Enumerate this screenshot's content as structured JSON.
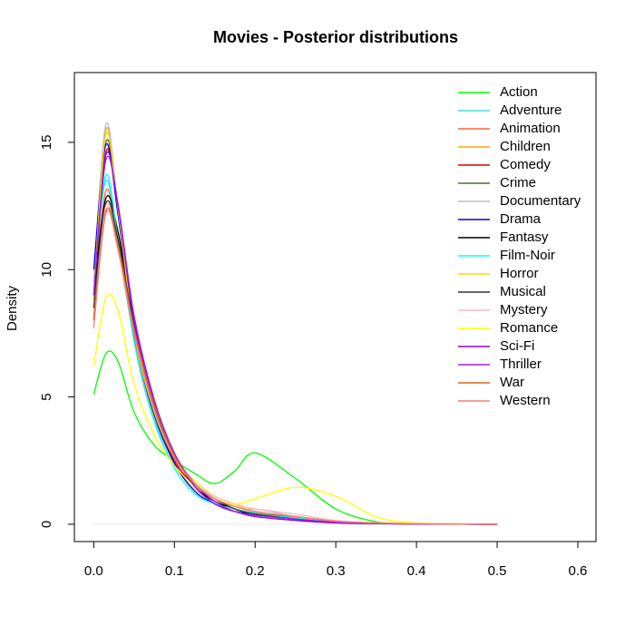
{
  "chart_data": {
    "type": "line",
    "title": "Movies - Posterior distributions",
    "y_label": "Density",
    "x": [
      0,
      0.015,
      0.03,
      0.05,
      0.075,
      0.1,
      0.125,
      0.15,
      0.175,
      0.2,
      0.25,
      0.3,
      0.35,
      0.4,
      0.5
    ],
    "xlim": [
      -0.024,
      0.6225
    ],
    "ylim": [
      -0.68,
      17.74
    ],
    "xticks": [
      {
        "value": 0,
        "label": "0.0"
      },
      0.1,
      0.2,
      0.3,
      0.4,
      0.5,
      0.6
    ],
    "yticks": [
      0,
      5,
      10,
      15
    ],
    "hline": 0,
    "legend": "top-right",
    "series": [
      {
        "name": "Action",
        "color": "#00ff00",
        "values": [
          5.1,
          6.7,
          6.4,
          4.4,
          3.1,
          2.5,
          2.0,
          1.6,
          2.1,
          2.8,
          1.8,
          0.6,
          0.1,
          0.02,
          0
        ]
      },
      {
        "name": "Adventure",
        "color": "#40e0d0",
        "values": [
          9.5,
          13.5,
          11,
          7.3,
          4.2,
          2.4,
          1.3,
          0.8,
          0.6,
          0.45,
          0.3,
          0.12,
          0.05,
          0.02,
          0
        ]
      },
      {
        "name": "Animation",
        "color": "#ff6347",
        "values": [
          8.5,
          13.1,
          11,
          7.5,
          4.4,
          2.5,
          1.5,
          1.0,
          0.7,
          0.5,
          0.25,
          0.1,
          0.05,
          0.02,
          0
        ]
      },
      {
        "name": "Children",
        "color": "#ffa500",
        "values": [
          8.8,
          15.5,
          12.3,
          7.4,
          4.3,
          2.6,
          1.6,
          1.0,
          0.7,
          0.5,
          0.25,
          0.12,
          0.05,
          0.03,
          0
        ]
      },
      {
        "name": "Comedy",
        "color": "#dd0000",
        "values": [
          8.0,
          14.6,
          12.2,
          7.6,
          4.4,
          2.5,
          1.5,
          1.0,
          0.6,
          0.4,
          0.2,
          0.08,
          0.03,
          0.01,
          0
        ]
      },
      {
        "name": "Crime",
        "color": "#556b2f",
        "values": [
          9,
          15,
          12.5,
          7.7,
          4.6,
          2.7,
          1.5,
          0.9,
          0.6,
          0.4,
          0.3,
          0.1,
          0.04,
          0.01,
          0
        ]
      },
      {
        "name": "Documentary",
        "color": "#bebebe",
        "values": [
          9.5,
          15.7,
          12.5,
          7.2,
          4.0,
          2.3,
          1.4,
          0.8,
          0.5,
          0.6,
          0.3,
          0.1,
          0.05,
          0.02,
          0
        ]
      },
      {
        "name": "Drama",
        "color": "#0000cd",
        "values": [
          10,
          14.9,
          12.2,
          7.3,
          4.3,
          2.4,
          1.3,
          0.8,
          0.5,
          0.4,
          0.2,
          0.08,
          0.03,
          0.01,
          0
        ]
      },
      {
        "name": "Fantasy",
        "color": "#000000",
        "values": [
          9,
          12.8,
          11.5,
          7.8,
          4.8,
          2.7,
          1.5,
          0.9,
          0.6,
          0.4,
          0.25,
          0.1,
          0.04,
          0.01,
          0
        ]
      },
      {
        "name": "Film-Noir",
        "color": "#00ffff",
        "values": [
          9.2,
          13.7,
          11.2,
          7.2,
          4.1,
          2.2,
          1.2,
          0.8,
          0.6,
          0.4,
          0.25,
          0.1,
          0.04,
          0.01,
          0
        ]
      },
      {
        "name": "Horror",
        "color": "#ffd700",
        "values": [
          9,
          15.3,
          12.4,
          7.5,
          4.4,
          2.6,
          1.7,
          1.1,
          0.8,
          0.5,
          0.3,
          0.12,
          0.06,
          0.03,
          0
        ]
      },
      {
        "name": "Musical",
        "color": "#333333",
        "values": [
          8.5,
          12.6,
          11.2,
          7.8,
          4.7,
          2.7,
          1.6,
          1.0,
          0.6,
          0.4,
          0.2,
          0.08,
          0.03,
          0.01,
          0
        ]
      },
      {
        "name": "Mystery",
        "color": "#ffb6c1",
        "values": [
          8,
          12.5,
          10.8,
          7.5,
          4.5,
          2.6,
          1.6,
          1.1,
          0.8,
          0.6,
          0.4,
          0.15,
          0.06,
          0.02,
          0
        ]
      },
      {
        "name": "Romance",
        "color": "#ffff00",
        "values": [
          6.2,
          8.9,
          8.4,
          5.5,
          3.5,
          2.3,
          1.5,
          1.0,
          0.8,
          1.0,
          1.45,
          1.1,
          0.3,
          0.05,
          0
        ]
      },
      {
        "name": "Sci-Fi",
        "color": "#9400d3",
        "values": [
          9,
          14.5,
          12.5,
          8,
          4.8,
          2.7,
          1.5,
          0.8,
          0.5,
          0.3,
          0.15,
          0.05,
          0.02,
          0.01,
          0
        ]
      },
      {
        "name": "Thriller",
        "color": "#a020f0",
        "values": [
          9,
          14.3,
          12.6,
          8.2,
          4.9,
          2.8,
          1.6,
          0.9,
          0.5,
          0.35,
          0.2,
          0.08,
          0.03,
          0.01,
          0
        ]
      },
      {
        "name": "War",
        "color": "#d2691e",
        "values": [
          8,
          12.3,
          11,
          7.7,
          4.7,
          2.7,
          1.6,
          1.0,
          0.7,
          0.5,
          0.3,
          0.12,
          0.05,
          0.02,
          0
        ]
      },
      {
        "name": "Western",
        "color": "#f08080",
        "values": [
          7.7,
          12.2,
          10.8,
          7.5,
          4.5,
          2.6,
          1.6,
          1.0,
          0.7,
          0.5,
          0.3,
          0.12,
          0.05,
          0.02,
          0
        ]
      }
    ]
  }
}
